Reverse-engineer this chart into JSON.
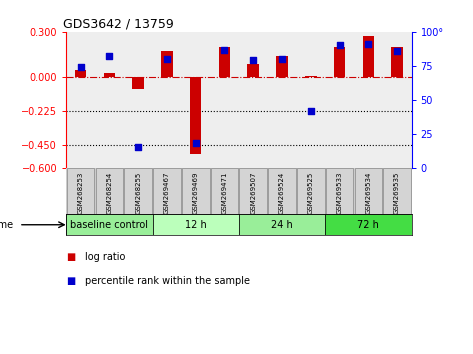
{
  "title": "GDS3642 / 13759",
  "samples": [
    "GSM268253",
    "GSM268254",
    "GSM268255",
    "GSM269467",
    "GSM269469",
    "GSM269471",
    "GSM269507",
    "GSM269524",
    "GSM269525",
    "GSM269533",
    "GSM269534",
    "GSM269535"
  ],
  "log_ratio": [
    0.05,
    0.03,
    -0.08,
    0.17,
    -0.51,
    0.2,
    0.09,
    0.14,
    0.01,
    0.2,
    0.27,
    0.2
  ],
  "percentile_rank": [
    74,
    82,
    15,
    80,
    18,
    87,
    79,
    80,
    42,
    90,
    91,
    86
  ],
  "ylim_left": [
    -0.6,
    0.3
  ],
  "ylim_right": [
    0,
    100
  ],
  "yticks_left": [
    -0.6,
    -0.45,
    -0.225,
    0.0,
    0.3
  ],
  "yticks_right": [
    0,
    25,
    50,
    75,
    100
  ],
  "hlines_dotted": [
    -0.225,
    -0.45
  ],
  "hline_dash": 0.0,
  "groups": [
    {
      "label": "baseline control",
      "start": 0,
      "end": 3,
      "color": "#99ee99"
    },
    {
      "label": "12 h",
      "start": 3,
      "end": 6,
      "color": "#bbffbb"
    },
    {
      "label": "24 h",
      "start": 6,
      "end": 9,
      "color": "#99ee99"
    },
    {
      "label": "72 h",
      "start": 9,
      "end": 12,
      "color": "#44dd44"
    }
  ],
  "bar_color": "#cc0000",
  "scatter_color": "#0000cc",
  "background_color": "#ffffff",
  "plot_bg": "#eeeeee",
  "bar_width": 0.4,
  "scatter_size": 18
}
